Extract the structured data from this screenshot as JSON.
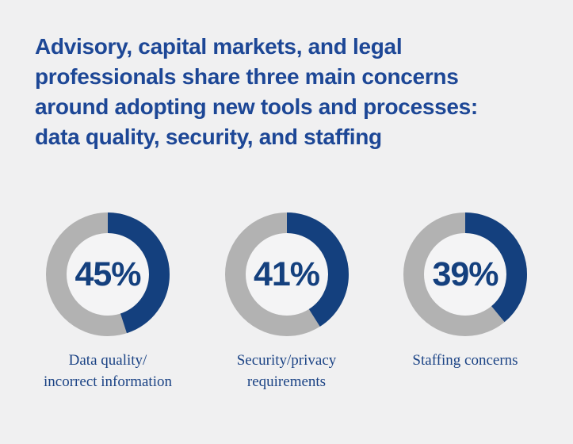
{
  "theme": {
    "background": "#f0f0f1",
    "title_color": "#1d4796",
    "accent_blue": "#14407e",
    "remainder_gray": "#b2b2b2",
    "label_color": "#1b4385",
    "donut_hole": "#f4f4f5"
  },
  "header": {
    "title_lines": [
      "Advisory, capital markets, and legal",
      "professionals share three main concerns",
      "around adopting new tools and processes:",
      "data quality, security, and staffing"
    ]
  },
  "chart_data": {
    "type": "pie",
    "variant": "donut",
    "title": "Advisory, capital markets, and legal professionals share three main concerns around adopting new tools and processes: data quality, security, and staffing",
    "unit": "%",
    "start_angle_deg": 0,
    "direction": "clockwise",
    "categories": [
      "Data quality/incorrect information",
      "Security/privacy requirements",
      "Staffing concerns"
    ],
    "values": [
      45,
      41,
      39
    ],
    "items": [
      {
        "value": 45,
        "display": "45%",
        "label_lines": [
          "Data quality/",
          "incorrect information"
        ]
      },
      {
        "value": 41,
        "display": "41%",
        "label_lines": [
          "Security/privacy",
          "requirements"
        ]
      },
      {
        "value": 39,
        "display": "39%",
        "label_lines": [
          "Staffing concerns"
        ]
      }
    ],
    "colors": {
      "arc_filled": "#14407e",
      "arc_remainder": "#b2b2b2",
      "value_text": "#14407e",
      "label_text": "#1b4385"
    }
  }
}
